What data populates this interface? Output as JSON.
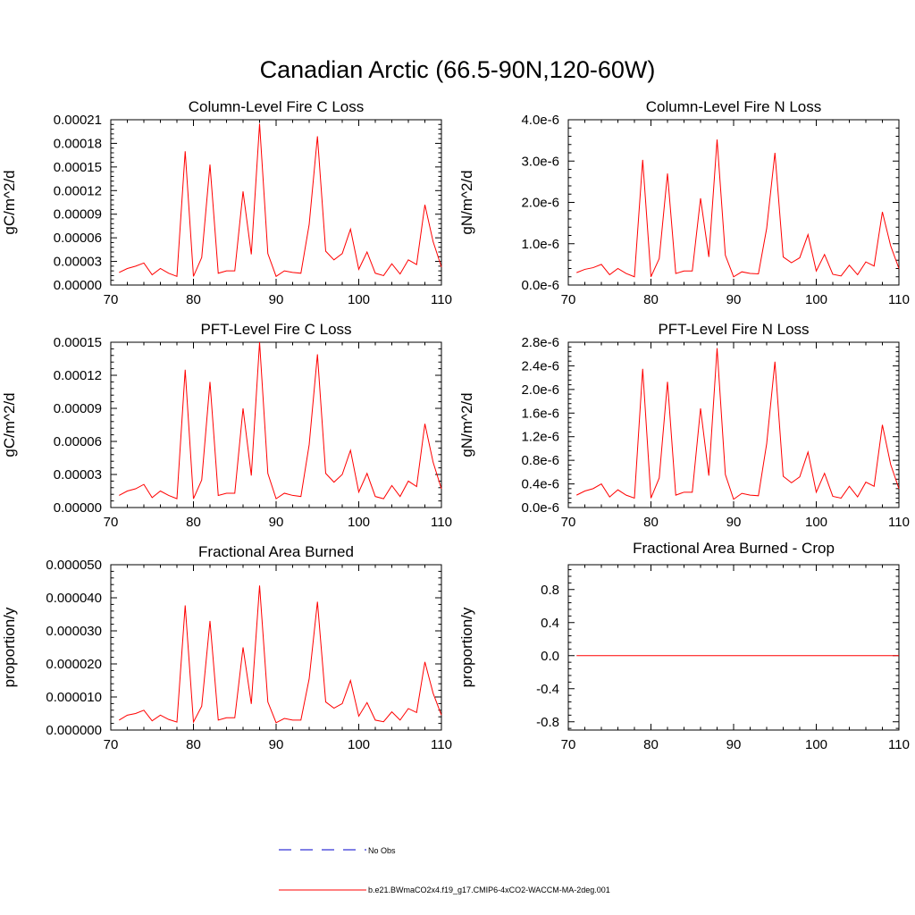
{
  "figure_title": "Canadian Arctic (66.5-90N,120-60W)",
  "colors": {
    "model_line": "#ff0000",
    "obs_line": "#0000cc",
    "axis": "#000000"
  },
  "legend": {
    "obs_label": "No Obs",
    "model_label": "b.e21.BWmaCO2x4.f19_g17.CMIP6-4xCO2-WACCM-MA-2deg.001"
  },
  "chart_data": [
    {
      "type": "line",
      "title": "Column-Level Fire C Loss",
      "ylabel": "gC/m^2/d",
      "xlim": [
        70,
        110
      ],
      "ylim": [
        0,
        0.00021
      ],
      "xticks": [
        70,
        80,
        90,
        100,
        110
      ],
      "xtick_labels": [
        "70",
        "80",
        "90",
        "100",
        "110"
      ],
      "yticks": [
        0,
        3e-05,
        6e-05,
        9e-05,
        0.00012,
        0.00015,
        0.00018,
        0.00021
      ],
      "ytick_labels": [
        "0.00000",
        "0.00003",
        "0.00006",
        "0.00009",
        "0.00012",
        "0.00015",
        "0.00018",
        "0.00021"
      ],
      "series": [
        {
          "name": "b.e21.BWmaCO2x4.f19_g17.CMIP6-4xCO2-WACCM-MA-2deg.001",
          "x": [
            71,
            72,
            73,
            74,
            75,
            76,
            77,
            78,
            79,
            80,
            81,
            82,
            83,
            84,
            85,
            86,
            87,
            88,
            89,
            90,
            91,
            92,
            93,
            94,
            95,
            96,
            97,
            98,
            99,
            100,
            101,
            102,
            103,
            104,
            105,
            106,
            107,
            108,
            109,
            110
          ],
          "values": [
            1.6e-05,
            2.1e-05,
            2.4e-05,
            2.8e-05,
            1.3e-05,
            2.1e-05,
            1.5e-05,
            1.1e-05,
            0.00017,
            1.1e-05,
            3.5e-05,
            0.000153,
            1.5e-05,
            1.8e-05,
            1.8e-05,
            0.000119,
            3.9e-05,
            0.000205,
            4e-05,
            1.1e-05,
            1.8e-05,
            1.6e-05,
            1.5e-05,
            7.7e-05,
            0.000189,
            4.3e-05,
            3.2e-05,
            4e-05,
            7.1e-05,
            2e-05,
            4.2e-05,
            1.5e-05,
            1.2e-05,
            2.7e-05,
            1.4e-05,
            3.2e-05,
            2.6e-05,
            0.000102,
            5.5e-05,
            2.3e-05
          ]
        }
      ]
    },
    {
      "type": "line",
      "title": "Column-Level Fire N Loss",
      "ylabel": "gN/m^2/d",
      "xlim": [
        70,
        110
      ],
      "ylim": [
        0,
        4e-06
      ],
      "xticks": [
        70,
        80,
        90,
        100,
        110
      ],
      "xtick_labels": [
        "70",
        "80",
        "90",
        "100",
        "110"
      ],
      "yticks": [
        0,
        1e-06,
        2e-06,
        3e-06,
        4e-06
      ],
      "ytick_labels": [
        "0.0e-6",
        "1.0e-6",
        "2.0e-6",
        "3.0e-6",
        "4.0e-6"
      ],
      "series": [
        {
          "name": "b.e21.BWmaCO2x4.f19_g17.CMIP6-4xCO2-WACCM-MA-2deg.001",
          "x": [
            71,
            72,
            73,
            74,
            75,
            76,
            77,
            78,
            79,
            80,
            81,
            82,
            83,
            84,
            85,
            86,
            87,
            88,
            89,
            90,
            91,
            92,
            93,
            94,
            95,
            96,
            97,
            98,
            99,
            100,
            101,
            102,
            103,
            104,
            105,
            106,
            107,
            108,
            109,
            110
          ],
          "values": [
            3e-07,
            3.8e-07,
            4.2e-07,
            5e-07,
            2.5e-07,
            4e-07,
            2.8e-07,
            2e-07,
            3.03e-06,
            2e-07,
            6.4e-07,
            2.7e-06,
            2.8e-07,
            3.4e-07,
            3.4e-07,
            2.1e-06,
            6.8e-07,
            3.52e-06,
            7.2e-07,
            2e-07,
            3.2e-07,
            2.8e-07,
            2.7e-07,
            1.37e-06,
            3.2e-06,
            6.8e-07,
            5.4e-07,
            6.6e-07,
            1.22e-06,
            3.4e-07,
            7.4e-07,
            2.6e-07,
            2.2e-07,
            4.8e-07,
            2.5e-07,
            5.6e-07,
            4.6e-07,
            1.77e-06,
            9.5e-07,
            4e-07
          ]
        }
      ]
    },
    {
      "type": "line",
      "title": "PFT-Level Fire C Loss",
      "ylabel": "gC/m^2/d",
      "xlim": [
        70,
        110
      ],
      "ylim": [
        0,
        0.00015
      ],
      "xticks": [
        70,
        80,
        90,
        100,
        110
      ],
      "xtick_labels": [
        "70",
        "80",
        "90",
        "100",
        "110"
      ],
      "yticks": [
        0,
        3e-05,
        6e-05,
        9e-05,
        0.00012,
        0.00015
      ],
      "ytick_labels": [
        "0.00000",
        "0.00003",
        "0.00006",
        "0.00009",
        "0.00012",
        "0.00015"
      ],
      "series": [
        {
          "name": "b.e21.BWmaCO2x4.f19_g17.CMIP6-4xCO2-WACCM-MA-2deg.001",
          "x": [
            71,
            72,
            73,
            74,
            75,
            76,
            77,
            78,
            79,
            80,
            81,
            82,
            83,
            84,
            85,
            86,
            87,
            88,
            89,
            90,
            91,
            92,
            93,
            94,
            95,
            96,
            97,
            98,
            99,
            100,
            101,
            102,
            103,
            104,
            105,
            106,
            107,
            108,
            109,
            110
          ],
          "values": [
            1.1e-05,
            1.5e-05,
            1.7e-05,
            2.1e-05,
            9e-06,
            1.5e-05,
            1.1e-05,
            8e-06,
            0.000125,
            8e-06,
            2.5e-05,
            0.000114,
            1.1e-05,
            1.3e-05,
            1.3e-05,
            9e-05,
            2.9e-05,
            0.00015,
            3.1e-05,
            8e-06,
            1.3e-05,
            1.1e-05,
            1e-05,
            5.7e-05,
            0.000139,
            3.1e-05,
            2.3e-05,
            3e-05,
            5.2e-05,
            1.4e-05,
            3.1e-05,
            1e-05,
            8e-06,
            2e-05,
            1e-05,
            2.4e-05,
            1.9e-05,
            7.6e-05,
            4.1e-05,
            1.7e-05
          ]
        }
      ]
    },
    {
      "type": "line",
      "title": "PFT-Level Fire N Loss",
      "ylabel": "gN/m^2/d",
      "xlim": [
        70,
        110
      ],
      "ylim": [
        0,
        2.8e-06
      ],
      "xticks": [
        70,
        80,
        90,
        100,
        110
      ],
      "xtick_labels": [
        "70",
        "80",
        "90",
        "100",
        "110"
      ],
      "yticks": [
        0,
        4e-07,
        8e-07,
        1.2e-06,
        1.6e-06,
        2e-06,
        2.4e-06,
        2.8e-06
      ],
      "ytick_labels": [
        "0.0e-6",
        "0.4e-6",
        "0.8e-6",
        "1.2e-6",
        "1.6e-6",
        "2.0e-6",
        "2.4e-6",
        "2.8e-6"
      ],
      "series": [
        {
          "name": "b.e21.BWmaCO2x4.f19_g17.CMIP6-4xCO2-WACCM-MA-2deg.001",
          "x": [
            71,
            72,
            73,
            74,
            75,
            76,
            77,
            78,
            79,
            80,
            81,
            82,
            83,
            84,
            85,
            86,
            87,
            88,
            89,
            90,
            91,
            92,
            93,
            94,
            95,
            96,
            97,
            98,
            99,
            100,
            101,
            102,
            103,
            104,
            105,
            106,
            107,
            108,
            109,
            110
          ],
          "values": [
            2.1e-07,
            2.8e-07,
            3.2e-07,
            4e-07,
            1.8e-07,
            3e-07,
            2.1e-07,
            1.6e-07,
            2.35e-06,
            1.6e-07,
            5e-07,
            2.13e-06,
            2.1e-07,
            2.6e-07,
            2.6e-07,
            1.68e-06,
            5.4e-07,
            2.7e-06,
            5.6e-07,
            1.4e-07,
            2.4e-07,
            2.1e-07,
            2e-07,
            1.08e-06,
            2.47e-06,
            5.3e-07,
            4.2e-07,
            5.2e-07,
            9.4e-07,
            2.6e-07,
            5.8e-07,
            1.9e-07,
            1.6e-07,
            3.6e-07,
            1.8e-07,
            4.3e-07,
            3.6e-07,
            1.4e-06,
            7.3e-07,
            3.2e-07
          ]
        }
      ]
    },
    {
      "type": "line",
      "title": "Fractional Area Burned",
      "ylabel": "proportion/y",
      "xlim": [
        70,
        110
      ],
      "ylim": [
        0,
        5e-05
      ],
      "xticks": [
        70,
        80,
        90,
        100,
        110
      ],
      "xtick_labels": [
        "70",
        "80",
        "90",
        "100",
        "110"
      ],
      "yticks": [
        0,
        1e-05,
        2e-05,
        3e-05,
        4e-05,
        5e-05
      ],
      "ytick_labels": [
        "0.000000",
        "0.000010",
        "0.000020",
        "0.000030",
        "0.000040",
        "0.000050"
      ],
      "series": [
        {
          "name": "b.e21.BWmaCO2x4.f19_g17.CMIP6-4xCO2-WACCM-MA-2deg.001",
          "x": [
            71,
            72,
            73,
            74,
            75,
            76,
            77,
            78,
            79,
            80,
            81,
            82,
            83,
            84,
            85,
            86,
            87,
            88,
            89,
            90,
            91,
            92,
            93,
            94,
            95,
            96,
            97,
            98,
            99,
            100,
            101,
            102,
            103,
            104,
            105,
            106,
            107,
            108,
            109,
            110
          ],
          "values": [
            3e-06,
            4.5e-06,
            5e-06,
            6e-06,
            2.8e-06,
            4.5e-06,
            3.2e-06,
            2.4e-06,
            3.77e-05,
            2.4e-06,
            7.2e-06,
            3.3e-05,
            3e-06,
            3.7e-06,
            3.7e-06,
            2.5e-05,
            7.9e-06,
            4.37e-05,
            8.5e-06,
            2.2e-06,
            3.5e-06,
            3e-06,
            3e-06,
            1.55e-05,
            3.88e-05,
            8.5e-06,
            6.6e-06,
            8e-06,
            1.5e-05,
            4.2e-06,
            8.3e-06,
            3e-06,
            2.5e-06,
            5.5e-06,
            3e-06,
            6.5e-06,
            5.3e-06,
            2.06e-05,
            1.11e-05,
            4.5e-06
          ]
        }
      ]
    },
    {
      "type": "line",
      "title": "Fractional Area Burned - Crop",
      "ylabel": "proportion/y",
      "xlim": [
        70,
        110
      ],
      "ylim": [
        -0.9,
        1.1
      ],
      "xticks": [
        70,
        80,
        90,
        100,
        110
      ],
      "xtick_labels": [
        "70",
        "80",
        "90",
        "100",
        "110"
      ],
      "yticks": [
        -0.8,
        -0.4,
        0,
        0.4,
        0.8
      ],
      "ytick_labels": [
        "-0.8",
        "-0.4",
        "0.0",
        "0.4",
        "0.8"
      ],
      "series": [
        {
          "name": "b.e21.BWmaCO2x4.f19_g17.CMIP6-4xCO2-WACCM-MA-2deg.001",
          "x": [
            71,
            110
          ],
          "values": [
            0,
            0
          ]
        }
      ]
    }
  ]
}
